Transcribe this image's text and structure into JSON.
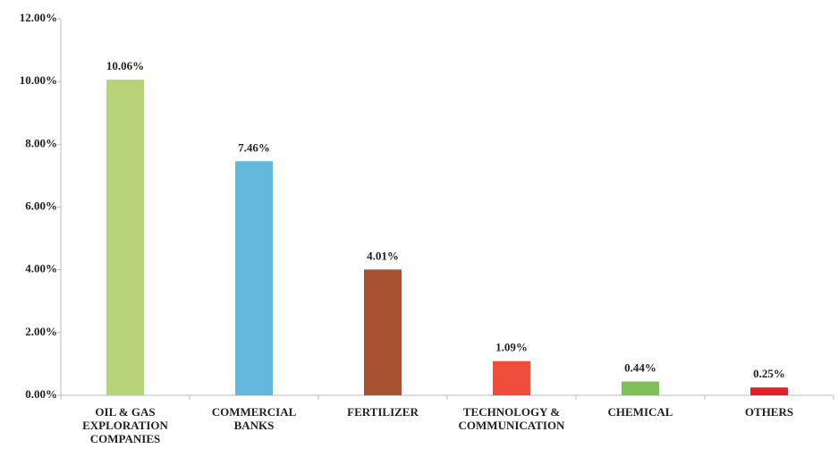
{
  "chart_data": {
    "type": "bar",
    "categories": [
      "OIL & GAS\nEXPLORATION\nCOMPANIES",
      "COMMERCIAL\nBANKS",
      "FERTILIZER",
      "TECHNOLOGY &\nCOMMUNICATION",
      "CHEMICAL",
      "OTHERS"
    ],
    "values": [
      10.06,
      7.46,
      4.01,
      1.09,
      0.44,
      0.25
    ],
    "value_labels": [
      "10.06%",
      "7.46%",
      "4.01%",
      "1.09%",
      "0.44%",
      "0.25%"
    ],
    "colors": [
      "#b5d47a",
      "#63b6dc",
      "#a65231",
      "#ef4c3c",
      "#7fbf5a",
      "#e0202a"
    ],
    "ylim": [
      0,
      12
    ],
    "yticks": [
      {
        "value": 0,
        "label": "0.00%"
      },
      {
        "value": 2,
        "label": "2.00%"
      },
      {
        "value": 4,
        "label": "4.00%"
      },
      {
        "value": 6,
        "label": "6.00%"
      },
      {
        "value": 8,
        "label": "8.00%"
      },
      {
        "value": 10,
        "label": "10.00%"
      },
      {
        "value": 12,
        "label": "12.00%"
      }
    ],
    "grid": false
  }
}
